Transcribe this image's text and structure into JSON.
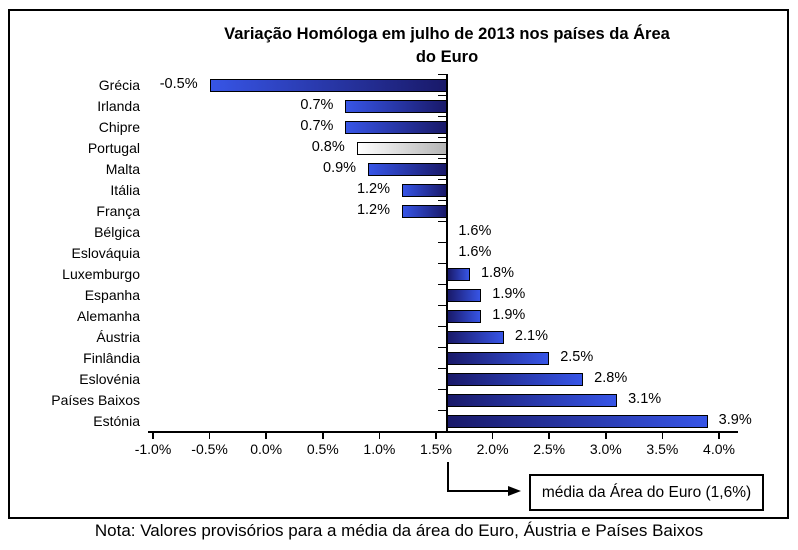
{
  "chart_data": {
    "type": "bar",
    "orientation": "horizontal",
    "title": "Variação Homóloga em julho de 2013 nos países da Área do Euro",
    "title_lines": [
      "Variação Homóloga em julho de 2013 nos países da Área",
      "do Euro"
    ],
    "categories": [
      "Grécia",
      "Irlanda",
      "Chipre",
      "Portugal",
      "Malta",
      "Itália",
      "França",
      "Bélgica",
      "Eslováquia",
      "Luxemburgo",
      "Espanha",
      "Alemanha",
      "Áustria",
      "Finlândia",
      "Eslovénia",
      "Países Baixos",
      "Estónia"
    ],
    "values": [
      -0.5,
      0.7,
      0.7,
      0.8,
      0.9,
      1.2,
      1.2,
      1.6,
      1.6,
      1.8,
      1.9,
      1.9,
      2.1,
      2.5,
      2.8,
      3.1,
      3.9
    ],
    "value_labels": [
      "-0.5%",
      "0.7%",
      "0.7%",
      "0.8%",
      "0.9%",
      "1.2%",
      "1.2%",
      "1.6%",
      "1.6%",
      "1.8%",
      "1.9%",
      "1.9%",
      "2.1%",
      "2.5%",
      "2.8%",
      "3.1%",
      "3.9%"
    ],
    "baseline_value": 1.6,
    "xlim": [
      -1.0,
      4.0
    ],
    "x_tick_step": 0.5,
    "x_tick_labels": [
      "-1.0%",
      "-0.5%",
      "0.0%",
      "0.5%",
      "1.0%",
      "1.5%",
      "2.0%",
      "2.5%",
      "3.0%",
      "3.5%",
      "4.0%"
    ],
    "x_tick_values": [
      -1.0,
      -0.5,
      0.0,
      0.5,
      1.0,
      1.5,
      2.0,
      2.5,
      3.0,
      3.5,
      4.0
    ],
    "highlight_category": "Portugal",
    "grid": false,
    "legend": false,
    "colors": {
      "bar_bright": "#3755E6",
      "bar_dark": "#191969",
      "bar_border": "#000000",
      "highlight_bright": "#FFFFFF",
      "highlight_dark": "#B5B5B5",
      "text": "#000000"
    },
    "annotation": "média da Área do Euro (1,6%)",
    "note": "Nota: Valores provisórios para a média da área do Euro, Áustria e Países Baixos"
  }
}
